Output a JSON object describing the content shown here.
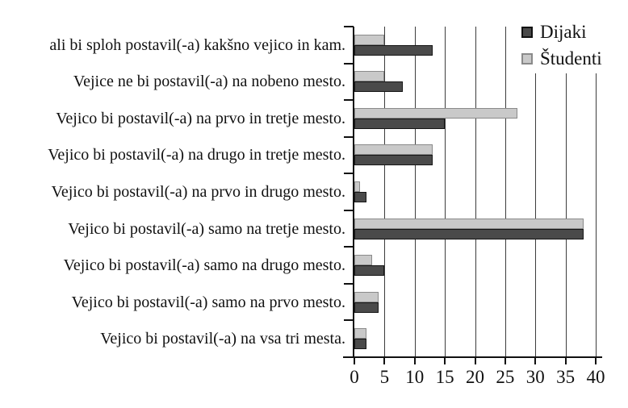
{
  "chart_data": {
    "type": "bar",
    "orientation": "horizontal",
    "title": "",
    "xlabel": "",
    "ylabel": "",
    "xlim": [
      0,
      40
    ],
    "x_ticks": [
      0,
      5,
      10,
      15,
      20,
      25,
      30,
      35,
      40
    ],
    "grid": true,
    "legend_position": "top-right",
    "categories_top_to_bottom": [
      "ali bi sploh postavil(-a) kakšno vejico in kam.",
      "Vejice ne bi postavil(-a) na nobeno mesto.",
      "Vejico bi postavil(-a) na prvo in tretje mesto.",
      "Vejico bi postavil(-a) na drugo in tretje mesto.",
      "Vejico bi postavil(-a) na prvo in drugo mesto.",
      "Vejico bi postavil(-a) samo na tretje mesto.",
      "Vejico bi postavil(-a) samo na drugo mesto.",
      "Vejico bi postavil(-a) samo na prvo mesto.",
      "Vejico bi postavil(-a) na vsa tri mesta."
    ],
    "series": [
      {
        "name": "Dijaki",
        "color": "#4a4a4a",
        "border_color": "#161616",
        "values": [
          13,
          8,
          15,
          13,
          2,
          38,
          5,
          4,
          2
        ]
      },
      {
        "name": "Študenti",
        "color": "#c9c9c9",
        "border_color": "#8a8a8a",
        "values": [
          5,
          5,
          27,
          13,
          1,
          38,
          3,
          4,
          2
        ]
      }
    ],
    "group_order_top_to_bottom": [
      "Študenti",
      "Dijaki"
    ]
  }
}
